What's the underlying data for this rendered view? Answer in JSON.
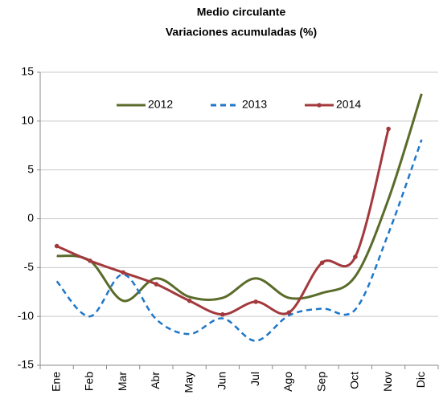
{
  "chart_data": {
    "type": "line",
    "title": "Medio circulante",
    "subtitle": "Variaciones acumuladas (%)",
    "categories": [
      "Ene",
      "Feb",
      "Mar",
      "Abr",
      "May",
      "Jun",
      "Jul",
      "Ago",
      "Sep",
      "Oct",
      "Nov",
      "Dic"
    ],
    "series": [
      {
        "name": "2012",
        "color": "#5a6b2a",
        "dash": false,
        "markers": false,
        "values": [
          -3.8,
          -4.3,
          -8.4,
          -6.1,
          -8.0,
          -8.1,
          -6.1,
          -8.1,
          -7.6,
          -5.9,
          2.0,
          12.8
        ]
      },
      {
        "name": "2013",
        "color": "#1f77c9",
        "dash": true,
        "markers": false,
        "values": [
          -6.4,
          -10.0,
          -5.7,
          -10.3,
          -11.8,
          -10.2,
          -12.5,
          -9.9,
          -9.2,
          -9.3,
          -1.5,
          8.1
        ]
      },
      {
        "name": "2014",
        "color": "#a3393c",
        "dash": false,
        "markers": true,
        "values": [
          -2.8,
          -4.3,
          -5.5,
          -6.7,
          -8.4,
          -9.8,
          -8.5,
          -9.6,
          -4.5,
          -3.9,
          9.2,
          null
        ]
      }
    ],
    "ylim": [
      -15,
      15
    ],
    "yticks": [
      -15,
      -10,
      -5,
      0,
      5,
      10,
      15
    ],
    "grid": true,
    "smooth": true
  }
}
